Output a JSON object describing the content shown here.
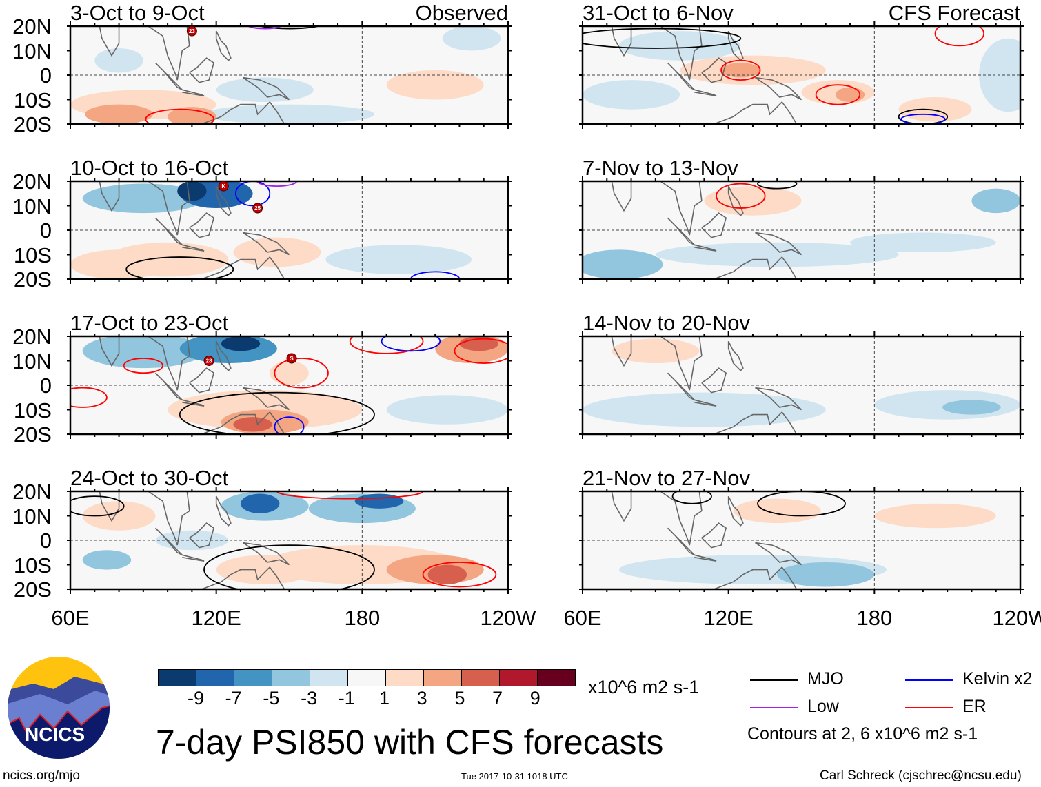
{
  "title": "7-day PSI850 with CFS forecasts",
  "source_url": "ncics.org/mjo",
  "timestamp": "Tue 2017-10-31 1018 UTC",
  "author": "Carl Schreck (cjschrec@ncsu.edu)",
  "logo_text": "NCICS",
  "observed_label": "Observed",
  "forecast_label": "CFS Forecast",
  "lat_ticks": [
    "20N",
    "10N",
    "0",
    "10S",
    "20S"
  ],
  "lon_ticks": [
    "60E",
    "120E",
    "180",
    "120W"
  ],
  "legend": {
    "units": "x10^6 m2 s-1",
    "contour_note": "Contours at 2, 6 x10^6 m2 s-1",
    "lines": [
      {
        "label": "MJO",
        "color": "#000000"
      },
      {
        "label": "Kelvin x2",
        "color": "#0000ff"
      },
      {
        "label": "Low",
        "color": "#a020f0"
      },
      {
        "label": "ER",
        "color": "#ff0000"
      }
    ]
  },
  "chart_data": {
    "type": "heatmap",
    "variable": "850-hPa streamfunction anomaly (7-day)",
    "units": "x10^6 m2 s-1",
    "xlim": [
      "60E",
      "120W"
    ],
    "ylim": [
      "20S",
      "20N"
    ],
    "colorbar": {
      "ticks": [
        "-9",
        "-7",
        "-5",
        "-3",
        "-1",
        "1",
        "3",
        "5",
        "7",
        "9"
      ],
      "colors": [
        "#0b3a6e",
        "#2166ac",
        "#4393c3",
        "#92c5de",
        "#d1e5f0",
        "#f7f7f7",
        "#fddbc7",
        "#f4a582",
        "#d6604d",
        "#b2182b",
        "#67001f"
      ]
    },
    "panels": [
      {
        "title": "3-Oct to 9-Oct",
        "kind": "observed",
        "storms": [
          "23"
        ],
        "blobs": [
          [
            90,
            -12,
            30,
            6,
            2
          ],
          [
            80,
            -16,
            14,
            4,
            4
          ],
          [
            170,
            -5,
            25,
            5,
            1
          ],
          [
            210,
            -4,
            20,
            6,
            2
          ],
          [
            110,
            -17,
            10,
            4,
            4
          ],
          [
            150,
            -16,
            35,
            4,
            -2
          ],
          [
            140,
            -6,
            20,
            5,
            -1
          ],
          [
            80,
            6,
            10,
            5,
            -1
          ],
          [
            225,
            15,
            12,
            5,
            -1
          ]
        ],
        "contours": [
          [
            105,
            -18,
            14,
            4,
            "ER"
          ],
          [
            150,
            24,
            20,
            5,
            "MJO"
          ],
          [
            140,
            21,
            8,
            2,
            "Low"
          ]
        ]
      },
      {
        "title": "10-Oct to 16-Oct",
        "kind": "observed",
        "storms": [
          "K",
          "25"
        ],
        "blobs": [
          [
            90,
            13,
            25,
            6,
            -4
          ],
          [
            120,
            15,
            15,
            6,
            -7
          ],
          [
            110,
            16,
            6,
            4,
            -9
          ],
          [
            100,
            -12,
            25,
            7,
            3
          ],
          [
            145,
            -9,
            18,
            6,
            2
          ],
          [
            195,
            -12,
            30,
            6,
            -2
          ],
          [
            200,
            12,
            30,
            5,
            1
          ],
          [
            80,
            -14,
            20,
            6,
            2
          ]
        ],
        "contours": [
          [
            105,
            -16,
            22,
            5,
            "MJO"
          ],
          [
            135,
            15,
            7,
            5,
            "Kelvin"
          ],
          [
            210,
            -20,
            10,
            3,
            "Kelvin"
          ],
          [
            145,
            20,
            8,
            2,
            "Low"
          ]
        ]
      },
      {
        "title": "17-Oct to 23-Oct",
        "kind": "observed",
        "storms": [
          "28",
          "S"
        ],
        "blobs": [
          [
            90,
            14,
            25,
            7,
            -4
          ],
          [
            125,
            15,
            20,
            6,
            -6
          ],
          [
            130,
            17,
            8,
            3,
            -9
          ],
          [
            150,
            5,
            8,
            5,
            3
          ],
          [
            140,
            -10,
            40,
            8,
            2
          ],
          [
            140,
            -15,
            18,
            5,
            5
          ],
          [
            135,
            -16,
            8,
            3,
            7
          ],
          [
            225,
            15,
            15,
            6,
            5
          ],
          [
            228,
            17,
            8,
            3,
            7
          ],
          [
            215,
            -10,
            25,
            6,
            -2
          ],
          [
            200,
            10,
            30,
            6,
            1
          ]
        ],
        "contours": [
          [
            145,
            -12,
            40,
            9,
            "MJO"
          ],
          [
            155,
            5,
            11,
            6,
            "ER"
          ],
          [
            90,
            8,
            8,
            3,
            "ER"
          ],
          [
            65,
            -5,
            10,
            4,
            "ER"
          ],
          [
            190,
            18,
            15,
            5,
            "ER"
          ],
          [
            200,
            18,
            12,
            4,
            "Kelvin"
          ],
          [
            230,
            14,
            12,
            5,
            "ER"
          ],
          [
            150,
            -17,
            6,
            4,
            "Kelvin"
          ]
        ]
      },
      {
        "title": "24-Oct to 30-Oct",
        "kind": "observed",
        "storms": [],
        "blobs": [
          [
            140,
            14,
            18,
            6,
            -4
          ],
          [
            138,
            15,
            8,
            4,
            -7
          ],
          [
            180,
            13,
            22,
            6,
            -3
          ],
          [
            187,
            16,
            10,
            3,
            -7
          ],
          [
            75,
            -8,
            10,
            4,
            -3
          ],
          [
            80,
            10,
            15,
            6,
            2
          ],
          [
            180,
            -10,
            40,
            8,
            2
          ],
          [
            210,
            -12,
            20,
            6,
            5
          ],
          [
            215,
            -14,
            8,
            4,
            7
          ],
          [
            140,
            -12,
            20,
            6,
            3
          ],
          [
            110,
            0,
            15,
            4,
            -1
          ]
        ],
        "contours": [
          [
            150,
            -12,
            35,
            10,
            "MJO"
          ],
          [
            220,
            -14,
            15,
            5,
            "ER"
          ],
          [
            175,
            20,
            30,
            3,
            "ER"
          ],
          [
            70,
            14,
            12,
            4,
            "MJO"
          ]
        ]
      },
      {
        "title": "31-Oct to 6-Nov",
        "kind": "forecast",
        "storms": [],
        "blobs": [
          [
            130,
            2,
            30,
            6,
            2
          ],
          [
            125,
            2,
            8,
            3,
            4
          ],
          [
            165,
            -7,
            15,
            5,
            2
          ],
          [
            170,
            -8,
            6,
            3,
            4
          ],
          [
            205,
            -14,
            15,
            5,
            3
          ],
          [
            235,
            0,
            12,
            15,
            -2
          ],
          [
            80,
            -8,
            20,
            6,
            -1
          ],
          [
            100,
            12,
            25,
            6,
            -1
          ],
          [
            215,
            15,
            12,
            5,
            1
          ]
        ],
        "contours": [
          [
            125,
            2,
            8,
            4,
            "ER"
          ],
          [
            165,
            -8,
            9,
            4,
            "ER"
          ],
          [
            215,
            17,
            10,
            5,
            "ER"
          ],
          [
            90,
            15,
            35,
            4,
            "MJO"
          ],
          [
            200,
            -17,
            10,
            3,
            "MJO"
          ],
          [
            200,
            -18,
            9,
            2,
            "Kelvin"
          ]
        ]
      },
      {
        "title": "7-Nov to 13-Nov",
        "kind": "forecast",
        "storms": [],
        "blobs": [
          [
            130,
            12,
            20,
            6,
            2
          ],
          [
            200,
            14,
            30,
            5,
            1
          ],
          [
            230,
            12,
            10,
            5,
            -3
          ],
          [
            75,
            -14,
            18,
            6,
            -3
          ],
          [
            140,
            -10,
            50,
            5,
            -1
          ],
          [
            200,
            -5,
            30,
            4,
            -1
          ]
        ],
        "contours": [
          [
            125,
            14,
            10,
            5,
            "ER"
          ],
          [
            140,
            19,
            8,
            2,
            "MJO"
          ]
        ]
      },
      {
        "title": "14-Nov to 20-Nov",
        "kind": "forecast",
        "storms": [],
        "blobs": [
          [
            90,
            14,
            18,
            5,
            2
          ],
          [
            200,
            14,
            40,
            5,
            1
          ],
          [
            110,
            -10,
            50,
            7,
            -1
          ],
          [
            210,
            -8,
            30,
            6,
            -2
          ],
          [
            220,
            -9,
            12,
            3,
            -3
          ]
        ],
        "contours": []
      },
      {
        "title": "21-Nov to 27-Nov",
        "kind": "forecast",
        "storms": [],
        "blobs": [
          [
            140,
            12,
            18,
            5,
            2
          ],
          [
            205,
            10,
            25,
            5,
            2
          ],
          [
            160,
            -14,
            20,
            5,
            -3
          ],
          [
            130,
            -12,
            55,
            6,
            -1
          ],
          [
            100,
            12,
            15,
            5,
            1
          ]
        ],
        "contours": [
          [
            105,
            18,
            8,
            3,
            "MJO"
          ],
          [
            150,
            15,
            18,
            5,
            "MJO"
          ]
        ]
      }
    ]
  }
}
